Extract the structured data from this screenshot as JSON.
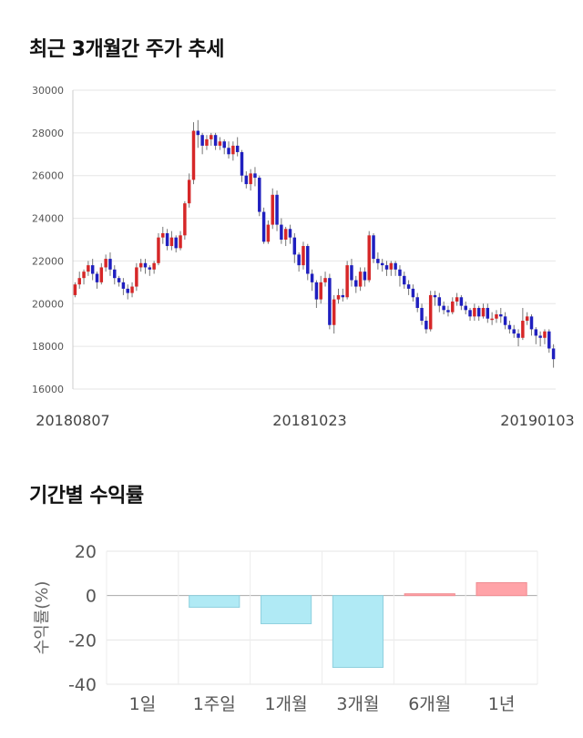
{
  "section1": {
    "title": "최근 3개월간 주가 추세"
  },
  "section2": {
    "title": "기간별 수익률"
  },
  "chart_data": [
    {
      "type": "candlestick",
      "title": "최근 3개월간 주가 추세",
      "x_tick_labels": [
        "20180807",
        "20181023",
        "20190103"
      ],
      "y_ticks": [
        16000,
        18000,
        20000,
        22000,
        24000,
        26000,
        28000,
        30000
      ],
      "ylim": [
        16000,
        30000
      ],
      "up_color": "#d62728",
      "down_color": "#1f1fbf",
      "grid": true,
      "candles": [
        [
          20400,
          20900,
          21000,
          20300
        ],
        [
          20900,
          21200,
          21500,
          20700
        ],
        [
          21200,
          21500,
          21600,
          20900
        ],
        [
          21500,
          21800,
          22000,
          21300
        ],
        [
          21800,
          21400,
          22100,
          21100
        ],
        [
          21400,
          21000,
          21500,
          20700
        ],
        [
          21000,
          21700,
          21900,
          20900
        ],
        [
          21700,
          22100,
          22300,
          21500
        ],
        [
          22100,
          21600,
          22400,
          21300
        ],
        [
          21600,
          21200,
          21800,
          20900
        ],
        [
          21200,
          21000,
          21300,
          20800
        ],
        [
          21000,
          20700,
          21200,
          20400
        ],
        [
          20700,
          20500,
          20900,
          20200
        ],
        [
          20500,
          20800,
          21000,
          20300
        ],
        [
          20800,
          21700,
          21900,
          20600
        ],
        [
          21700,
          21900,
          22100,
          21500
        ],
        [
          21900,
          21700,
          22100,
          21400
        ],
        [
          21700,
          21600,
          21800,
          21300
        ],
        [
          21600,
          21900,
          22000,
          21400
        ],
        [
          21900,
          23100,
          23300,
          21800
        ],
        [
          23100,
          23300,
          23600,
          22800
        ],
        [
          23300,
          22700,
          23500,
          22500
        ],
        [
          22700,
          23100,
          23400,
          22500
        ],
        [
          23100,
          22600,
          23200,
          22400
        ],
        [
          22600,
          23200,
          23400,
          22500
        ],
        [
          23200,
          24700,
          24800,
          23000
        ],
        [
          24700,
          25800,
          26100,
          24500
        ],
        [
          25800,
          28100,
          28500,
          25600
        ],
        [
          28100,
          27900,
          28600,
          27300
        ],
        [
          27900,
          27400,
          28000,
          27000
        ],
        [
          27400,
          27700,
          27900,
          27200
        ],
        [
          27700,
          27900,
          28000,
          27400
        ],
        [
          27900,
          27400,
          28000,
          27200
        ],
        [
          27400,
          27600,
          27800,
          27200
        ],
        [
          27600,
          27300,
          27700,
          27000
        ],
        [
          27300,
          27000,
          27600,
          26800
        ],
        [
          27000,
          27400,
          27600,
          26700
        ],
        [
          27400,
          27100,
          27800,
          26900
        ],
        [
          27100,
          26000,
          27200,
          25700
        ],
        [
          26000,
          25600,
          26200,
          25400
        ],
        [
          25600,
          26100,
          26300,
          25300
        ],
        [
          26100,
          25900,
          26400,
          25500
        ],
        [
          25900,
          24300,
          26000,
          24100
        ],
        [
          24300,
          22900,
          24500,
          22800
        ],
        [
          22900,
          23700,
          23900,
          22800
        ],
        [
          23700,
          25100,
          25400,
          23500
        ],
        [
          25100,
          23700,
          25300,
          23400
        ],
        [
          23700,
          23000,
          24000,
          22800
        ],
        [
          23000,
          23500,
          23600,
          22700
        ],
        [
          23500,
          23100,
          23700,
          22800
        ],
        [
          23100,
          22300,
          23300,
          21900
        ],
        [
          22300,
          21800,
          22400,
          21500
        ],
        [
          21800,
          22700,
          22900,
          21600
        ],
        [
          22700,
          21400,
          22800,
          21100
        ],
        [
          21400,
          21000,
          21600,
          20600
        ],
        [
          21000,
          20200,
          21100,
          19800
        ],
        [
          20200,
          21000,
          21300,
          20000
        ],
        [
          21000,
          21200,
          21500,
          20800
        ],
        [
          21200,
          19000,
          21400,
          18800
        ],
        [
          19000,
          20200,
          20400,
          18600
        ],
        [
          20200,
          20400,
          20700,
          20000
        ],
        [
          20400,
          20300,
          20700,
          20100
        ],
        [
          20300,
          21800,
          22000,
          20200
        ],
        [
          21800,
          21100,
          22100,
          20800
        ],
        [
          21100,
          20800,
          21300,
          20500
        ],
        [
          20800,
          21500,
          21700,
          20600
        ],
        [
          21500,
          21100,
          21700,
          20800
        ],
        [
          21100,
          23200,
          23400,
          21000
        ],
        [
          23200,
          22100,
          23300,
          21900
        ],
        [
          22100,
          21900,
          22400,
          21600
        ],
        [
          21900,
          21800,
          22100,
          21500
        ],
        [
          21800,
          21600,
          22000,
          21300
        ],
        [
          21600,
          21900,
          22000,
          21300
        ],
        [
          21900,
          21600,
          22000,
          21300
        ],
        [
          21600,
          21300,
          21800,
          20800
        ],
        [
          21300,
          20900,
          21500,
          20700
        ],
        [
          20900,
          20700,
          21100,
          20400
        ],
        [
          20700,
          20300,
          20900,
          20100
        ],
        [
          20300,
          19800,
          20500,
          19600
        ],
        [
          19800,
          19200,
          20000,
          19000
        ],
        [
          19200,
          18800,
          19400,
          18600
        ],
        [
          18800,
          20400,
          20600,
          18700
        ],
        [
          20400,
          20300,
          20600,
          19900
        ],
        [
          20300,
          19900,
          20500,
          19600
        ],
        [
          19900,
          19700,
          20100,
          19500
        ],
        [
          19700,
          19600,
          19900,
          19400
        ],
        [
          19600,
          20100,
          20300,
          19500
        ],
        [
          20100,
          20300,
          20500,
          19900
        ],
        [
          20300,
          19900,
          20400,
          19700
        ],
        [
          19900,
          19700,
          20100,
          19500
        ],
        [
          19700,
          19400,
          19800,
          19200
        ],
        [
          19400,
          19800,
          20000,
          19200
        ],
        [
          19800,
          19400,
          19900,
          19200
        ],
        [
          19400,
          19800,
          20000,
          19300
        ],
        [
          19800,
          19300,
          20000,
          19100
        ],
        [
          19300,
          19300,
          19600,
          19000
        ],
        [
          19300,
          19500,
          19700,
          19100
        ],
        [
          19500,
          19400,
          19800,
          19100
        ],
        [
          19400,
          19000,
          19600,
          18800
        ],
        [
          19000,
          18800,
          19200,
          18600
        ],
        [
          18800,
          18600,
          19000,
          18400
        ],
        [
          18600,
          18400,
          18800,
          18000
        ],
        [
          18400,
          19200,
          19800,
          18300
        ],
        [
          19200,
          19400,
          19600,
          19000
        ],
        [
          19400,
          18800,
          19500,
          18500
        ],
        [
          18800,
          18500,
          18900,
          18100
        ],
        [
          18500,
          18400,
          18700,
          18000
        ],
        [
          18400,
          18700,
          18800,
          18100
        ],
        [
          18700,
          17900,
          18800,
          17700
        ],
        [
          17900,
          17400,
          18100,
          17000
        ]
      ]
    },
    {
      "type": "bar",
      "title": "기간별 수익률",
      "ylabel": "수익률(%)",
      "categories": [
        "1일",
        "1주일",
        "1개월",
        "3개월",
        "6개월",
        "1년"
      ],
      "values": [
        0,
        -5.3,
        -12.7,
        -32.4,
        0.8,
        5.8
      ],
      "ylim": [
        -40,
        20
      ],
      "y_ticks": [
        20,
        0,
        -20,
        -40
      ],
      "positive_color": "#ffa3a8",
      "negative_color": "#b0eaf5",
      "grid": true
    }
  ]
}
